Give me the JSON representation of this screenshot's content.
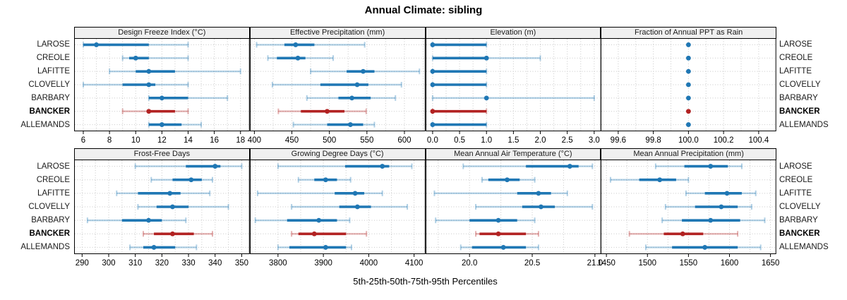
{
  "title": "Annual Climate: sibling",
  "caption": "5th-25th-50th-75th-95th Percentiles",
  "sites": [
    "LAROSE",
    "CREOLE",
    "LAFITTE",
    "CLOVELLY",
    "BARBARY",
    "BANCKER",
    "ALLEMANDS"
  ],
  "highlight_site": "BANCKER",
  "colors": {
    "series_normal": "#1f77b4",
    "series_normal_light": "rgba(31,119,180,0.35)",
    "series_highlight": "#b22222",
    "series_highlight_light": "rgba(178,34,34,0.35)",
    "strip_background": "#f0f0f0",
    "panel_border": "#000000",
    "gridline": "#c8c8c8",
    "text": "#000000"
  },
  "chart_data": {
    "type": "dotplot-percentile-lattice",
    "percentile_levels": [
      5,
      25,
      50,
      75,
      95
    ],
    "legend_note": "5th-25th-50th-75th-95th Percentiles",
    "grid": "dotted",
    "layout": {
      "rows": 2,
      "cols": 4
    },
    "panels": [
      {
        "title": "Design Freeze Index (°C)",
        "row": 0,
        "col": 0,
        "xlim": [
          5.3,
          18.7
        ],
        "ticks": [
          6,
          8,
          10,
          12,
          14,
          16,
          18
        ],
        "tick_labels": [
          "6",
          "8",
          "10",
          "12",
          "14",
          "16",
          "18"
        ],
        "values": [
          [
            6,
            6,
            7,
            11,
            14
          ],
          [
            9,
            9.5,
            10,
            11,
            14
          ],
          [
            8,
            10,
            11,
            13,
            18
          ],
          [
            6,
            9,
            11,
            11.5,
            14
          ],
          [
            11,
            11,
            12,
            14,
            17
          ],
          [
            9,
            11,
            11,
            13,
            14
          ],
          [
            11,
            11,
            12,
            13.5,
            15
          ]
        ]
      },
      {
        "title": "Effective Precipitation (mm)",
        "row": 0,
        "col": 1,
        "xlim": [
          394,
          628
        ],
        "ticks": [
          400,
          450,
          500,
          550,
          600
        ],
        "tick_labels": [
          "400",
          "450",
          "500",
          "550",
          "600"
        ],
        "values": [
          [
            403,
            440,
            455,
            480,
            547
          ],
          [
            418,
            430,
            458,
            468,
            505
          ],
          [
            475,
            523,
            545,
            560,
            620
          ],
          [
            424,
            488,
            537,
            552,
            596
          ],
          [
            470,
            512,
            530,
            555,
            588
          ],
          [
            432,
            462,
            497,
            520,
            549
          ],
          [
            452,
            497,
            528,
            545,
            560
          ]
        ]
      },
      {
        "title": "Elevation (m)",
        "row": 0,
        "col": 2,
        "xlim": [
          -0.13,
          3.13
        ],
        "ticks": [
          0.0,
          0.5,
          1.0,
          1.5,
          2.0,
          2.5,
          3.0
        ],
        "tick_labels": [
          "0.0",
          "0.5",
          "1.0",
          "1.5",
          "2.0",
          "2.5",
          "3.0"
        ],
        "values": [
          [
            0,
            0,
            0,
            1,
            1
          ],
          [
            0,
            0,
            1,
            1,
            2
          ],
          [
            0,
            0,
            0,
            1,
            1
          ],
          [
            0,
            0,
            0,
            1,
            1
          ],
          [
            0,
            1,
            1,
            1,
            3
          ],
          [
            0,
            0,
            0,
            1,
            1
          ],
          [
            0,
            0,
            0,
            1,
            1
          ]
        ]
      },
      {
        "title": "Fraction of Annual PPT as Rain",
        "row": 0,
        "col": 3,
        "xlim": [
          99.5,
          100.5
        ],
        "ticks": [
          99.6,
          99.8,
          100.0,
          100.2,
          100.4
        ],
        "tick_labels": [
          "99.6",
          "99.8",
          "100.0",
          "100.2",
          "100.4"
        ],
        "values": [
          [
            100,
            100,
            100,
            100,
            100
          ],
          [
            100,
            100,
            100,
            100,
            100
          ],
          [
            100,
            100,
            100,
            100,
            100
          ],
          [
            100,
            100,
            100,
            100,
            100
          ],
          [
            100,
            100,
            100,
            100,
            100
          ],
          [
            100,
            100,
            100,
            100,
            100
          ],
          [
            100,
            100,
            100,
            100,
            100
          ]
        ]
      },
      {
        "title": "Frost-Free Days",
        "row": 1,
        "col": 0,
        "xlim": [
          287,
          353
        ],
        "ticks": [
          290,
          300,
          310,
          320,
          330,
          340,
          350
        ],
        "tick_labels": [
          "290",
          "300",
          "310",
          "320",
          "330",
          "340",
          "350"
        ],
        "values": [
          [
            310,
            329,
            340,
            342,
            350
          ],
          [
            316,
            324,
            331,
            335,
            339
          ],
          [
            303,
            311,
            323,
            327,
            338
          ],
          [
            311,
            318,
            324,
            330,
            345
          ],
          [
            292,
            305,
            315,
            320,
            329
          ],
          [
            313,
            317,
            324,
            332,
            339
          ],
          [
            308,
            313,
            317,
            325,
            333
          ]
        ]
      },
      {
        "title": "Growing Degree Days (°C)",
        "row": 1,
        "col": 1,
        "xlim": [
          3738,
          4125
        ],
        "ticks": [
          3800,
          3900,
          4000,
          4100
        ],
        "tick_labels": [
          "3800",
          "3900",
          "4000",
          "4100"
        ],
        "values": [
          [
            3800,
            3948,
            4030,
            4045,
            4095
          ],
          [
            3845,
            3880,
            3905,
            3930,
            3960
          ],
          [
            3755,
            3925,
            3970,
            3990,
            4030
          ],
          [
            3830,
            3935,
            3975,
            4005,
            4085
          ],
          [
            3750,
            3820,
            3890,
            3930,
            3958
          ],
          [
            3830,
            3845,
            3880,
            3950,
            3995
          ],
          [
            3800,
            3825,
            3905,
            3950,
            3962
          ]
        ]
      },
      {
        "title": "Mean Annual Air Temperature (°C)",
        "row": 1,
        "col": 2,
        "xlim": [
          19.65,
          21.05
        ],
        "ticks": [
          20.0,
          20.5,
          21.0
        ],
        "tick_labels": [
          "20.0",
          "20.5",
          "21.0"
        ],
        "values": [
          [
            19.95,
            20.45,
            20.8,
            20.87,
            20.98
          ],
          [
            20.1,
            20.15,
            20.3,
            20.4,
            20.52
          ],
          [
            19.72,
            20.38,
            20.55,
            20.65,
            20.78
          ],
          [
            20.05,
            20.42,
            20.57,
            20.68,
            20.98
          ],
          [
            19.73,
            20.0,
            20.23,
            20.38,
            20.52
          ],
          [
            20.05,
            20.08,
            20.23,
            20.45,
            20.55
          ],
          [
            19.93,
            20.02,
            20.27,
            20.45,
            20.55
          ]
        ]
      },
      {
        "title": "Mean Annual Precipitation (mm)",
        "row": 1,
        "col": 3,
        "xlim": [
          1443,
          1657
        ],
        "ticks": [
          1450,
          1500,
          1550,
          1600,
          1650
        ],
        "tick_labels": [
          "1450",
          "1500",
          "1550",
          "1600",
          "1650"
        ],
        "values": [
          [
            1510,
            1545,
            1577,
            1598,
            1615
          ],
          [
            1455,
            1490,
            1515,
            1535,
            1550
          ],
          [
            1547,
            1570,
            1597,
            1615,
            1632
          ],
          [
            1522,
            1558,
            1590,
            1610,
            1627
          ],
          [
            1518,
            1542,
            1577,
            1613,
            1643
          ],
          [
            1478,
            1520,
            1543,
            1568,
            1610
          ],
          [
            1498,
            1530,
            1570,
            1610,
            1638
          ]
        ]
      }
    ]
  }
}
